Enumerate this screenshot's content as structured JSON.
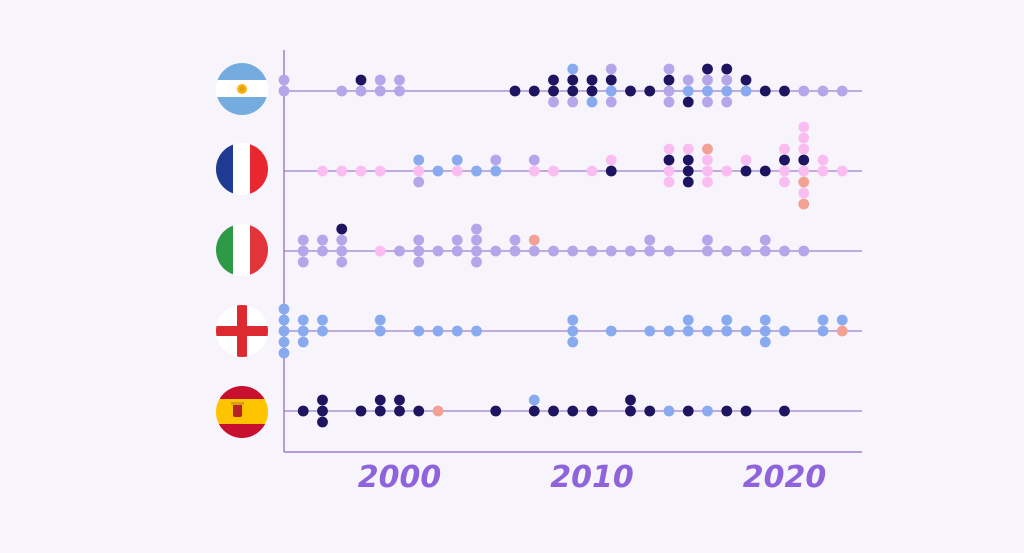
{
  "chart_data": {
    "type": "scatter",
    "title": "",
    "xlabel": "",
    "ylabel": "",
    "xlim": [
      1994,
      2024
    ],
    "x_ticks": [
      "2000",
      "2010",
      "2020"
    ],
    "grid": false,
    "colors": {
      "axis": "#9b7fd0",
      "tick_label": "#8e63dc",
      "navy": "#1e1460",
      "lavender": "#b5a5e9",
      "blue": "#8aaaf0",
      "pink": "#f9bdf1",
      "salmon": "#f3a095"
    },
    "countries": [
      {
        "flag": "argentina-flag-icon",
        "columns": [
          {
            "x": 1994,
            "dots": [
              "lavender",
              "lavender"
            ]
          },
          {
            "x": 1997,
            "dots": [
              "lavender"
            ]
          },
          {
            "x": 1998,
            "dots": [
              "lavender",
              "navy"
            ]
          },
          {
            "x": 1999,
            "dots": [
              "lavender",
              "lavender"
            ]
          },
          {
            "x": 2000,
            "dots": [
              "lavender",
              "lavender"
            ]
          },
          {
            "x": 2006,
            "dots": [
              "navy"
            ]
          },
          {
            "x": 2007,
            "dots": [
              "navy"
            ]
          },
          {
            "x": 2008,
            "dots": [
              "navy",
              "navy",
              "lavender"
            ]
          },
          {
            "x": 2009,
            "dots": [
              "navy",
              "navy",
              "lavender",
              "blue"
            ]
          },
          {
            "x": 2010,
            "dots": [
              "navy",
              "navy",
              "blue"
            ]
          },
          {
            "x": 2011,
            "dots": [
              "blue",
              "navy",
              "lavender",
              "lavender"
            ]
          },
          {
            "x": 2012,
            "dots": [
              "navy"
            ]
          },
          {
            "x": 2013,
            "dots": [
              "navy"
            ]
          },
          {
            "x": 2014,
            "dots": [
              "lavender",
              "navy",
              "lavender",
              "lavender"
            ]
          },
          {
            "x": 2015,
            "dots": [
              "blue",
              "lavender",
              "navy"
            ]
          },
          {
            "x": 2016,
            "dots": [
              "blue",
              "lavender",
              "lavender",
              "navy"
            ]
          },
          {
            "x": 2017,
            "dots": [
              "blue",
              "lavender",
              "lavender",
              "navy"
            ]
          },
          {
            "x": 2018,
            "dots": [
              "blue",
              "navy"
            ]
          },
          {
            "x": 2019,
            "dots": [
              "navy"
            ]
          },
          {
            "x": 2020,
            "dots": [
              "navy"
            ]
          },
          {
            "x": 2021,
            "dots": [
              "lavender"
            ]
          },
          {
            "x": 2022,
            "dots": [
              "lavender"
            ]
          },
          {
            "x": 2023,
            "dots": [
              "lavender"
            ]
          }
        ]
      },
      {
        "flag": "france-flag-icon",
        "columns": [
          {
            "x": 1996,
            "dots": [
              "pink"
            ]
          },
          {
            "x": 1997,
            "dots": [
              "pink"
            ]
          },
          {
            "x": 1998,
            "dots": [
              "pink"
            ]
          },
          {
            "x": 1999,
            "dots": [
              "pink"
            ]
          },
          {
            "x": 2001,
            "dots": [
              "pink",
              "blue",
              "lavender"
            ]
          },
          {
            "x": 2002,
            "dots": [
              "blue"
            ]
          },
          {
            "x": 2003,
            "dots": [
              "pink",
              "blue"
            ]
          },
          {
            "x": 2004,
            "dots": [
              "blue"
            ]
          },
          {
            "x": 2005,
            "dots": [
              "blue",
              "lavender"
            ]
          },
          {
            "x": 2007,
            "dots": [
              "pink",
              "lavender"
            ]
          },
          {
            "x": 2008,
            "dots": [
              "pink"
            ]
          },
          {
            "x": 2010,
            "dots": [
              "pink"
            ]
          },
          {
            "x": 2011,
            "dots": [
              "navy",
              "pink"
            ]
          },
          {
            "x": 2014,
            "dots": [
              "pink",
              "navy",
              "pink",
              "pink"
            ]
          },
          {
            "x": 2015,
            "dots": [
              "navy",
              "navy",
              "navy",
              "pink"
            ]
          },
          {
            "x": 2016,
            "dots": [
              "pink",
              "pink",
              "pink",
              "salmon"
            ]
          },
          {
            "x": 2017,
            "dots": [
              "pink"
            ]
          },
          {
            "x": 2018,
            "dots": [
              "navy",
              "pink"
            ]
          },
          {
            "x": 2019,
            "dots": [
              "navy"
            ]
          },
          {
            "x": 2020,
            "dots": [
              "pink",
              "navy",
              "pink",
              "pink"
            ]
          },
          {
            "x": 2021,
            "dots": [
              "pink",
              "navy",
              "salmon",
              "pink",
              "pink",
              "pink",
              "salmon",
              "pink"
            ]
          },
          {
            "x": 2022,
            "dots": [
              "pink",
              "pink"
            ]
          },
          {
            "x": 2023,
            "dots": [
              "pink"
            ]
          }
        ]
      },
      {
        "flag": "italy-flag-icon",
        "columns": [
          {
            "x": 1995,
            "dots": [
              "lavender",
              "lavender",
              "lavender"
            ]
          },
          {
            "x": 1996,
            "dots": [
              "lavender",
              "lavender"
            ]
          },
          {
            "x": 1997,
            "dots": [
              "lavender",
              "lavender",
              "lavender",
              "navy"
            ]
          },
          {
            "x": 1999,
            "dots": [
              "pink"
            ]
          },
          {
            "x": 2000,
            "dots": [
              "lavender"
            ]
          },
          {
            "x": 2001,
            "dots": [
              "lavender",
              "lavender",
              "lavender"
            ]
          },
          {
            "x": 2002,
            "dots": [
              "lavender"
            ]
          },
          {
            "x": 2003,
            "dots": [
              "lavender",
              "lavender"
            ]
          },
          {
            "x": 2004,
            "dots": [
              "lavender",
              "lavender",
              "lavender",
              "lavender"
            ]
          },
          {
            "x": 2005,
            "dots": [
              "lavender"
            ]
          },
          {
            "x": 2006,
            "dots": [
              "lavender",
              "lavender"
            ]
          },
          {
            "x": 2007,
            "dots": [
              "lavender",
              "salmon"
            ]
          },
          {
            "x": 2008,
            "dots": [
              "lavender"
            ]
          },
          {
            "x": 2009,
            "dots": [
              "lavender"
            ]
          },
          {
            "x": 2010,
            "dots": [
              "lavender"
            ]
          },
          {
            "x": 2011,
            "dots": [
              "lavender"
            ]
          },
          {
            "x": 2012,
            "dots": [
              "lavender"
            ]
          },
          {
            "x": 2013,
            "dots": [
              "lavender",
              "lavender"
            ]
          },
          {
            "x": 2014,
            "dots": [
              "lavender"
            ]
          },
          {
            "x": 2016,
            "dots": [
              "lavender",
              "lavender"
            ]
          },
          {
            "x": 2017,
            "dots": [
              "lavender"
            ]
          },
          {
            "x": 2018,
            "dots": [
              "lavender"
            ]
          },
          {
            "x": 2019,
            "dots": [
              "lavender",
              "lavender"
            ]
          },
          {
            "x": 2020,
            "dots": [
              "lavender"
            ]
          },
          {
            "x": 2021,
            "dots": [
              "lavender"
            ]
          }
        ]
      },
      {
        "flag": "england-flag-icon",
        "columns": [
          {
            "x": 1994,
            "dots": [
              "blue",
              "blue",
              "blue",
              "blue",
              "blue"
            ]
          },
          {
            "x": 1995,
            "dots": [
              "blue",
              "blue",
              "blue"
            ]
          },
          {
            "x": 1996,
            "dots": [
              "blue",
              "blue"
            ]
          },
          {
            "x": 1999,
            "dots": [
              "blue",
              "blue"
            ]
          },
          {
            "x": 2001,
            "dots": [
              "blue"
            ]
          },
          {
            "x": 2002,
            "dots": [
              "blue"
            ]
          },
          {
            "x": 2003,
            "dots": [
              "blue"
            ]
          },
          {
            "x": 2004,
            "dots": [
              "blue"
            ]
          },
          {
            "x": 2009,
            "dots": [
              "blue",
              "blue",
              "blue"
            ]
          },
          {
            "x": 2011,
            "dots": [
              "blue"
            ]
          },
          {
            "x": 2013,
            "dots": [
              "blue"
            ]
          },
          {
            "x": 2014,
            "dots": [
              "blue"
            ]
          },
          {
            "x": 2015,
            "dots": [
              "blue",
              "blue"
            ]
          },
          {
            "x": 2016,
            "dots": [
              "blue"
            ]
          },
          {
            "x": 2017,
            "dots": [
              "blue",
              "blue"
            ]
          },
          {
            "x": 2018,
            "dots": [
              "blue"
            ]
          },
          {
            "x": 2019,
            "dots": [
              "blue",
              "blue",
              "blue"
            ]
          },
          {
            "x": 2020,
            "dots": [
              "blue"
            ]
          },
          {
            "x": 2022,
            "dots": [
              "blue",
              "blue"
            ]
          },
          {
            "x": 2023,
            "dots": [
              "salmon",
              "blue"
            ]
          }
        ]
      },
      {
        "flag": "spain-flag-icon",
        "columns": [
          {
            "x": 1995,
            "dots": [
              "navy"
            ]
          },
          {
            "x": 1996,
            "dots": [
              "navy",
              "navy",
              "navy"
            ]
          },
          {
            "x": 1998,
            "dots": [
              "navy"
            ]
          },
          {
            "x": 1999,
            "dots": [
              "navy",
              "navy"
            ]
          },
          {
            "x": 2000,
            "dots": [
              "navy",
              "navy"
            ]
          },
          {
            "x": 2001,
            "dots": [
              "navy"
            ]
          },
          {
            "x": 2002,
            "dots": [
              "salmon"
            ]
          },
          {
            "x": 2005,
            "dots": [
              "navy"
            ]
          },
          {
            "x": 2007,
            "dots": [
              "navy",
              "blue"
            ]
          },
          {
            "x": 2008,
            "dots": [
              "navy"
            ]
          },
          {
            "x": 2009,
            "dots": [
              "navy"
            ]
          },
          {
            "x": 2010,
            "dots": [
              "navy"
            ]
          },
          {
            "x": 2012,
            "dots": [
              "navy",
              "navy"
            ]
          },
          {
            "x": 2013,
            "dots": [
              "navy"
            ]
          },
          {
            "x": 2014,
            "dots": [
              "blue"
            ]
          },
          {
            "x": 2015,
            "dots": [
              "navy"
            ]
          },
          {
            "x": 2016,
            "dots": [
              "blue"
            ]
          },
          {
            "x": 2017,
            "dots": [
              "navy"
            ]
          },
          {
            "x": 2018,
            "dots": [
              "navy"
            ]
          },
          {
            "x": 2020,
            "dots": [
              "navy"
            ]
          }
        ]
      }
    ]
  }
}
